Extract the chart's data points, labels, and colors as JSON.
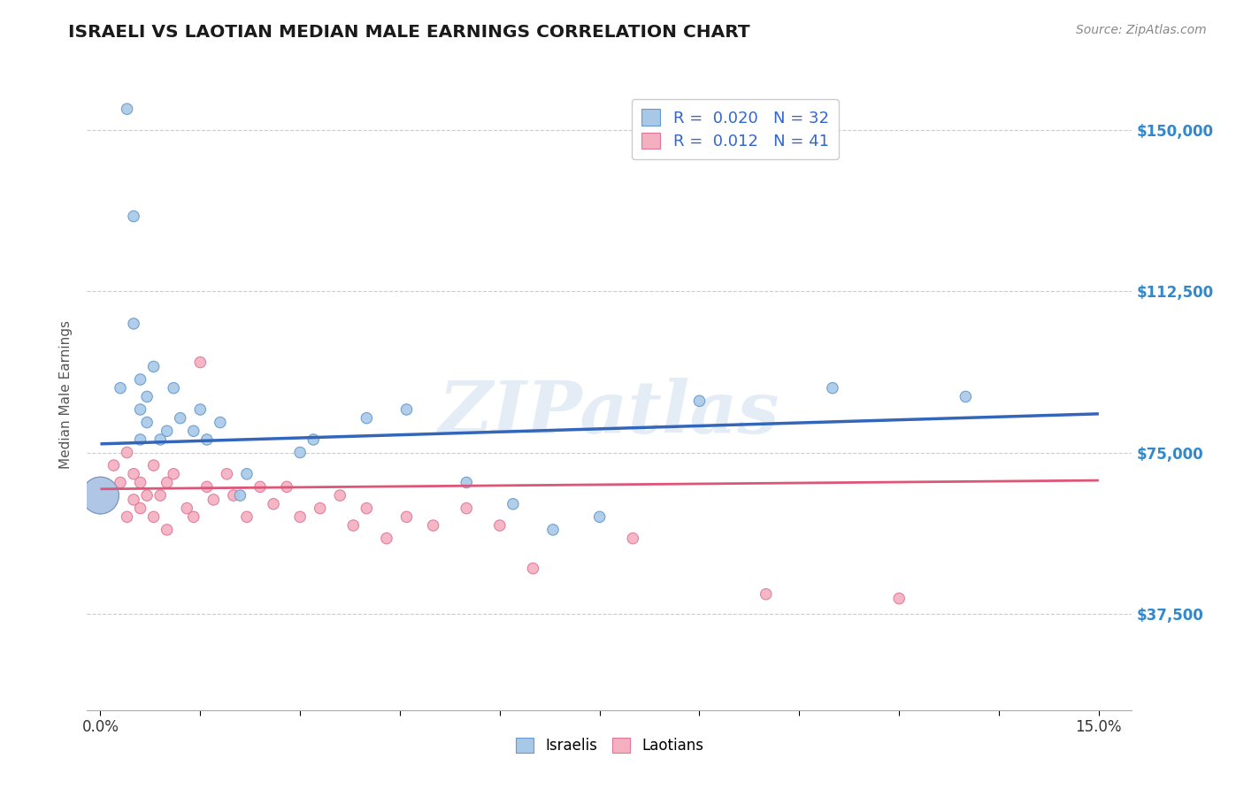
{
  "title": "ISRAELI VS LAOTIAN MEDIAN MALE EARNINGS CORRELATION CHART",
  "ylabel": "Median Male Earnings",
  "source": "Source: ZipAtlas.com",
  "xlim": [
    -0.002,
    0.155
  ],
  "ylim": [
    15000,
    162000
  ],
  "yticks": [
    37500,
    75000,
    112500,
    150000
  ],
  "ytick_labels": [
    "$37,500",
    "$75,000",
    "$112,500",
    "$150,000"
  ],
  "xtick_positions": [
    0.0,
    0.015,
    0.03,
    0.045,
    0.06,
    0.075,
    0.09,
    0.105,
    0.12,
    0.135,
    0.15
  ],
  "xtick_labels": [
    "0.0%",
    "",
    "",
    "",
    "",
    "",
    "",
    "",
    "",
    "",
    "15.0%"
  ],
  "watermark": "ZIPatlas",
  "legend_R_N_label1": "R =  0.020   N = 32",
  "legend_R_N_label2": "R =  0.012   N = 41",
  "legend_labels": [
    "Israelis",
    "Laotians"
  ],
  "israeli_color": "#a8c8e8",
  "laotian_color": "#f4b0c0",
  "israeli_edge": "#6699cc",
  "laotian_edge": "#dd7799",
  "blue_line_color": "#3366bb",
  "pink_line_color": "#dd5577",
  "israeli_x": [
    0.0,
    0.003,
    0.004,
    0.005,
    0.005,
    0.006,
    0.006,
    0.006,
    0.007,
    0.007,
    0.008,
    0.009,
    0.01,
    0.011,
    0.012,
    0.014,
    0.015,
    0.016,
    0.018,
    0.021,
    0.022,
    0.03,
    0.032,
    0.04,
    0.046,
    0.055,
    0.062,
    0.068,
    0.075,
    0.09,
    0.11,
    0.13
  ],
  "israeli_y": [
    65000,
    90000,
    155000,
    130000,
    105000,
    92000,
    85000,
    78000,
    88000,
    82000,
    95000,
    78000,
    80000,
    90000,
    83000,
    80000,
    85000,
    78000,
    82000,
    65000,
    70000,
    75000,
    78000,
    83000,
    85000,
    68000,
    63000,
    57000,
    60000,
    87000,
    90000,
    88000
  ],
  "israeli_sizes": [
    900,
    80,
    80,
    80,
    80,
    80,
    80,
    80,
    80,
    80,
    80,
    80,
    80,
    80,
    80,
    80,
    80,
    80,
    80,
    80,
    80,
    80,
    80,
    80,
    80,
    80,
    80,
    80,
    80,
    80,
    80,
    80
  ],
  "laotian_x": [
    0.0,
    0.002,
    0.003,
    0.004,
    0.004,
    0.005,
    0.005,
    0.006,
    0.006,
    0.007,
    0.008,
    0.008,
    0.009,
    0.01,
    0.01,
    0.011,
    0.013,
    0.014,
    0.015,
    0.016,
    0.017,
    0.019,
    0.02,
    0.022,
    0.024,
    0.026,
    0.028,
    0.03,
    0.033,
    0.036,
    0.038,
    0.04,
    0.043,
    0.046,
    0.05,
    0.055,
    0.06,
    0.065,
    0.08,
    0.1,
    0.12
  ],
  "laotian_y": [
    65000,
    72000,
    68000,
    75000,
    60000,
    70000,
    64000,
    68000,
    62000,
    65000,
    60000,
    72000,
    65000,
    68000,
    57000,
    70000,
    62000,
    60000,
    96000,
    67000,
    64000,
    70000,
    65000,
    60000,
    67000,
    63000,
    67000,
    60000,
    62000,
    65000,
    58000,
    62000,
    55000,
    60000,
    58000,
    62000,
    58000,
    48000,
    55000,
    42000,
    41000
  ],
  "laotian_sizes": [
    900,
    80,
    80,
    80,
    80,
    80,
    80,
    80,
    80,
    80,
    80,
    80,
    80,
    80,
    80,
    80,
    80,
    80,
    80,
    80,
    80,
    80,
    80,
    80,
    80,
    80,
    80,
    80,
    80,
    80,
    80,
    80,
    80,
    80,
    80,
    80,
    80,
    80,
    80,
    80,
    80
  ],
  "israeli_line_x": [
    0.0,
    0.15
  ],
  "israeli_line_y": [
    77000,
    84000
  ],
  "laotian_line_x": [
    0.0,
    0.15
  ],
  "laotian_line_y": [
    66500,
    68500
  ],
  "background_color": "#ffffff",
  "grid_color": "#cccccc",
  "title_color": "#1a1a1a",
  "axis_label_color": "#555555",
  "tick_label_color": "#3388cc",
  "watermark_color": "#c5d8ec",
  "watermark_alpha": 0.45
}
